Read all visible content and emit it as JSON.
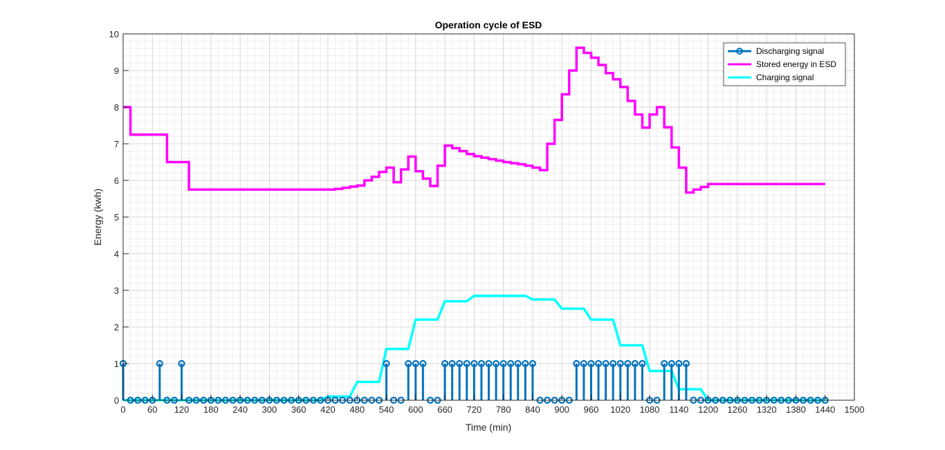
{
  "chart_data": {
    "type": "line",
    "title": "Operation cycle of ESD",
    "xlabel": "Time (min)",
    "ylabel": "Energy (kwh)",
    "xlim": [
      0,
      1500
    ],
    "ylim": [
      0,
      10
    ],
    "x_ticks": [
      0,
      60,
      120,
      180,
      240,
      300,
      360,
      420,
      480,
      540,
      600,
      660,
      720,
      780,
      840,
      900,
      960,
      1020,
      1080,
      1140,
      1200,
      1260,
      1320,
      1380,
      1440,
      1500
    ],
    "y_ticks": [
      0,
      1,
      2,
      3,
      4,
      5,
      6,
      7,
      8,
      9,
      10
    ],
    "grid": true,
    "minor_grid": true,
    "legend_position": "top-right",
    "series": [
      {
        "name": "Discharging signal",
        "style": "stem",
        "color": "#0072BD",
        "x": [
          0,
          15,
          30,
          45,
          60,
          75,
          90,
          105,
          120,
          135,
          150,
          165,
          180,
          195,
          210,
          225,
          240,
          255,
          270,
          285,
          300,
          315,
          330,
          345,
          360,
          375,
          390,
          405,
          420,
          435,
          450,
          465,
          480,
          495,
          510,
          525,
          540,
          555,
          570,
          585,
          600,
          615,
          630,
          645,
          660,
          675,
          690,
          705,
          720,
          735,
          750,
          765,
          780,
          795,
          810,
          825,
          840,
          855,
          870,
          885,
          900,
          915,
          930,
          945,
          960,
          975,
          990,
          1005,
          1020,
          1035,
          1050,
          1065,
          1080,
          1095,
          1110,
          1125,
          1140,
          1155,
          1170,
          1185,
          1200,
          1215,
          1230,
          1245,
          1260,
          1275,
          1290,
          1305,
          1320,
          1335,
          1350,
          1365,
          1380,
          1395,
          1410,
          1425,
          1440
        ],
        "values": [
          1,
          0,
          0,
          0,
          0,
          1,
          0,
          0,
          1,
          0,
          0,
          0,
          0,
          0,
          0,
          0,
          0,
          0,
          0,
          0,
          0,
          0,
          0,
          0,
          0,
          0,
          0,
          0,
          0,
          0,
          0,
          0,
          0,
          0,
          0,
          0,
          1,
          0,
          0,
          1,
          1,
          1,
          0,
          0,
          1,
          1,
          1,
          1,
          1,
          1,
          1,
          1,
          1,
          1,
          1,
          1,
          1,
          0,
          0,
          0,
          0,
          0,
          1,
          1,
          1,
          1,
          1,
          1,
          1,
          1,
          1,
          1,
          0,
          0,
          1,
          1,
          1,
          1,
          0,
          0,
          0,
          0,
          0,
          0,
          0,
          0,
          0,
          0,
          0,
          0,
          0,
          0,
          0,
          0,
          0,
          0,
          0
        ]
      },
      {
        "name": "Stored energy in ESD",
        "style": "stairs",
        "color": "#FF00FF",
        "x": [
          0,
          15,
          30,
          45,
          60,
          75,
          90,
          105,
          120,
          135,
          150,
          165,
          180,
          195,
          210,
          225,
          240,
          255,
          270,
          285,
          300,
          315,
          330,
          345,
          360,
          375,
          390,
          405,
          420,
          435,
          450,
          465,
          480,
          495,
          510,
          525,
          540,
          555,
          570,
          585,
          600,
          615,
          630,
          645,
          660,
          675,
          690,
          705,
          720,
          735,
          750,
          765,
          780,
          795,
          810,
          825,
          840,
          855,
          870,
          885,
          900,
          915,
          930,
          945,
          960,
          975,
          990,
          1005,
          1020,
          1035,
          1050,
          1065,
          1080,
          1095,
          1110,
          1125,
          1140,
          1155,
          1170,
          1185,
          1200,
          1215,
          1230,
          1245,
          1260,
          1275,
          1290,
          1305,
          1320,
          1335,
          1350,
          1365,
          1380,
          1395,
          1410,
          1425,
          1440
        ],
        "values": [
          8.0,
          7.25,
          7.25,
          7.25,
          7.25,
          7.25,
          6.5,
          6.5,
          6.5,
          5.75,
          5.75,
          5.75,
          5.75,
          5.75,
          5.75,
          5.75,
          5.75,
          5.75,
          5.75,
          5.75,
          5.75,
          5.75,
          5.75,
          5.75,
          5.75,
          5.75,
          5.75,
          5.75,
          5.75,
          5.77,
          5.8,
          5.83,
          5.86,
          6.0,
          6.1,
          6.23,
          6.35,
          5.95,
          6.3,
          6.65,
          6.25,
          6.05,
          5.85,
          6.4,
          6.95,
          6.88,
          6.8,
          6.72,
          6.66,
          6.62,
          6.58,
          6.54,
          6.5,
          6.47,
          6.44,
          6.4,
          6.35,
          6.28,
          7.0,
          7.65,
          8.35,
          9.0,
          9.62,
          9.48,
          9.35,
          9.15,
          8.93,
          8.76,
          8.55,
          8.17,
          7.8,
          7.44,
          7.8,
          8.0,
          7.45,
          6.9,
          6.35,
          5.67,
          5.75,
          5.82,
          5.9,
          5.9,
          5.9,
          5.9,
          5.9,
          5.9,
          5.9,
          5.9,
          5.9,
          5.9,
          5.9,
          5.9,
          5.9,
          5.9,
          5.9,
          5.9,
          5.9
        ]
      },
      {
        "name": "Charging signal",
        "style": "line",
        "color": "#00FFFF",
        "x": [
          0,
          405,
          420,
          465,
          480,
          525,
          540,
          585,
          600,
          645,
          660,
          705,
          720,
          825,
          840,
          885,
          900,
          945,
          960,
          1005,
          1020,
          1065,
          1080,
          1125,
          1140,
          1185,
          1200,
          1440
        ],
        "values": [
          0,
          0,
          0.1,
          0.1,
          0.5,
          0.5,
          1.4,
          1.4,
          2.2,
          2.2,
          2.7,
          2.7,
          2.85,
          2.85,
          2.75,
          2.75,
          2.5,
          2.5,
          2.2,
          2.2,
          1.5,
          1.5,
          0.8,
          0.8,
          0.3,
          0.3,
          0,
          0
        ]
      }
    ]
  }
}
